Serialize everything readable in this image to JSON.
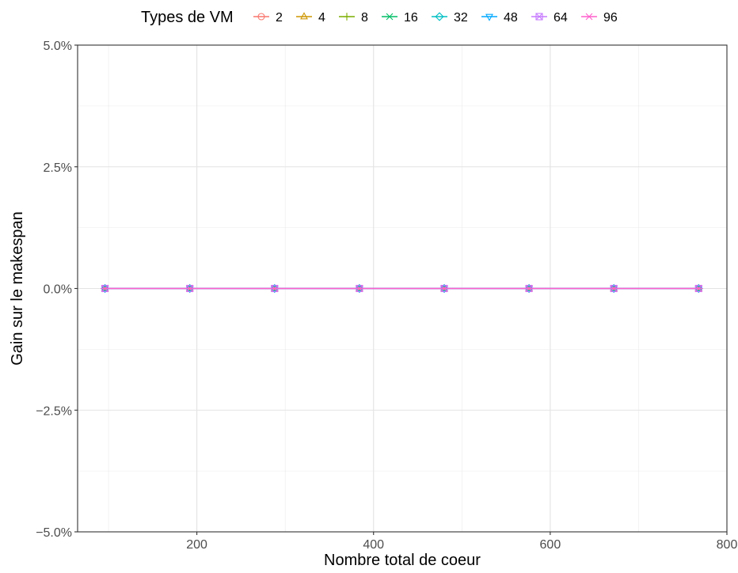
{
  "chart_data": {
    "type": "line",
    "title": "",
    "xlabel": "Nombre total de coeur",
    "ylabel": "Gain sur le makespan",
    "xlim": [
      65,
      800
    ],
    "ylim": [
      -5.0,
      5.0
    ],
    "x_ticks": [
      200,
      400,
      600,
      800
    ],
    "x_tick_labels": [
      "200",
      "400",
      "600",
      "800"
    ],
    "y_ticks": [
      -5.0,
      -2.5,
      0.0,
      2.5,
      5.0
    ],
    "y_tick_labels": [
      "−5.0%",
      "−2.5%",
      "0.0%",
      "2.5%",
      "5.0%"
    ],
    "grid": true,
    "legend": {
      "title": "Types de VM",
      "position": "top"
    },
    "x": [
      96,
      192,
      288,
      384,
      480,
      576,
      672,
      768
    ],
    "series": [
      {
        "name": "2",
        "color": "#F8766D",
        "shape": "circle-open",
        "values": [
          0,
          0,
          0,
          0,
          0,
          0,
          0,
          0
        ]
      },
      {
        "name": "4",
        "color": "#CD9600",
        "shape": "triangle-open",
        "values": [
          0,
          0,
          0,
          0,
          0,
          0,
          0,
          0
        ]
      },
      {
        "name": "8",
        "color": "#7CAE00",
        "shape": "plus",
        "values": [
          0,
          0,
          0,
          0,
          0,
          0,
          0,
          0
        ]
      },
      {
        "name": "16",
        "color": "#00BE67",
        "shape": "cross",
        "values": [
          0,
          0,
          0,
          0,
          0,
          0,
          0,
          0
        ]
      },
      {
        "name": "32",
        "color": "#00BFC4",
        "shape": "diamond-open",
        "values": [
          0,
          0,
          0,
          0,
          0,
          0,
          0,
          0
        ]
      },
      {
        "name": "48",
        "color": "#00A9FF",
        "shape": "triangle-down-open",
        "values": [
          0,
          0,
          0,
          0,
          0,
          0,
          0,
          0
        ]
      },
      {
        "name": "64",
        "color": "#C77CFF",
        "shape": "square-cross",
        "values": [
          0,
          0,
          0,
          0,
          0,
          0,
          0,
          0
        ]
      },
      {
        "name": "96",
        "color": "#FF61CC",
        "shape": "asterisk",
        "values": [
          0,
          0,
          0,
          0,
          0,
          0,
          0,
          0
        ]
      }
    ]
  }
}
